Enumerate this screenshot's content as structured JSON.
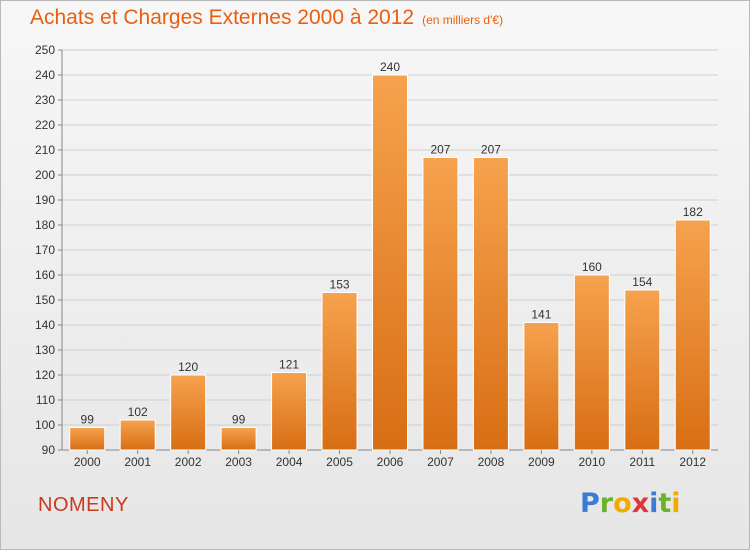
{
  "header": {
    "title": "Achats et Charges Externes 2000 à 2012",
    "subtitle": "(en milliers d'€)"
  },
  "footer": {
    "commune": "NOMENY",
    "logo": "Proxiti"
  },
  "colors": {
    "bar_top": "#f6a24e",
    "bar_bottom": "#d86e14",
    "title": "#e8600f",
    "commune": "#cc3a1e"
  },
  "chart_data": {
    "type": "bar",
    "title": "Achats et Charges Externes 2000 à 2012",
    "subtitle": "(en milliers d'€)",
    "categories": [
      "2000",
      "2001",
      "2002",
      "2003",
      "2004",
      "2005",
      "2006",
      "2007",
      "2008",
      "2009",
      "2010",
      "2011",
      "2012"
    ],
    "values": [
      99,
      102,
      120,
      99,
      121,
      153,
      240,
      207,
      207,
      141,
      160,
      154,
      182
    ],
    "ylim": [
      90,
      250
    ],
    "yticks": [
      90,
      100,
      110,
      120,
      130,
      140,
      150,
      160,
      170,
      180,
      190,
      200,
      210,
      220,
      230,
      240,
      250
    ],
    "grid": true,
    "legend": "none",
    "xlabel": "",
    "ylabel": ""
  }
}
